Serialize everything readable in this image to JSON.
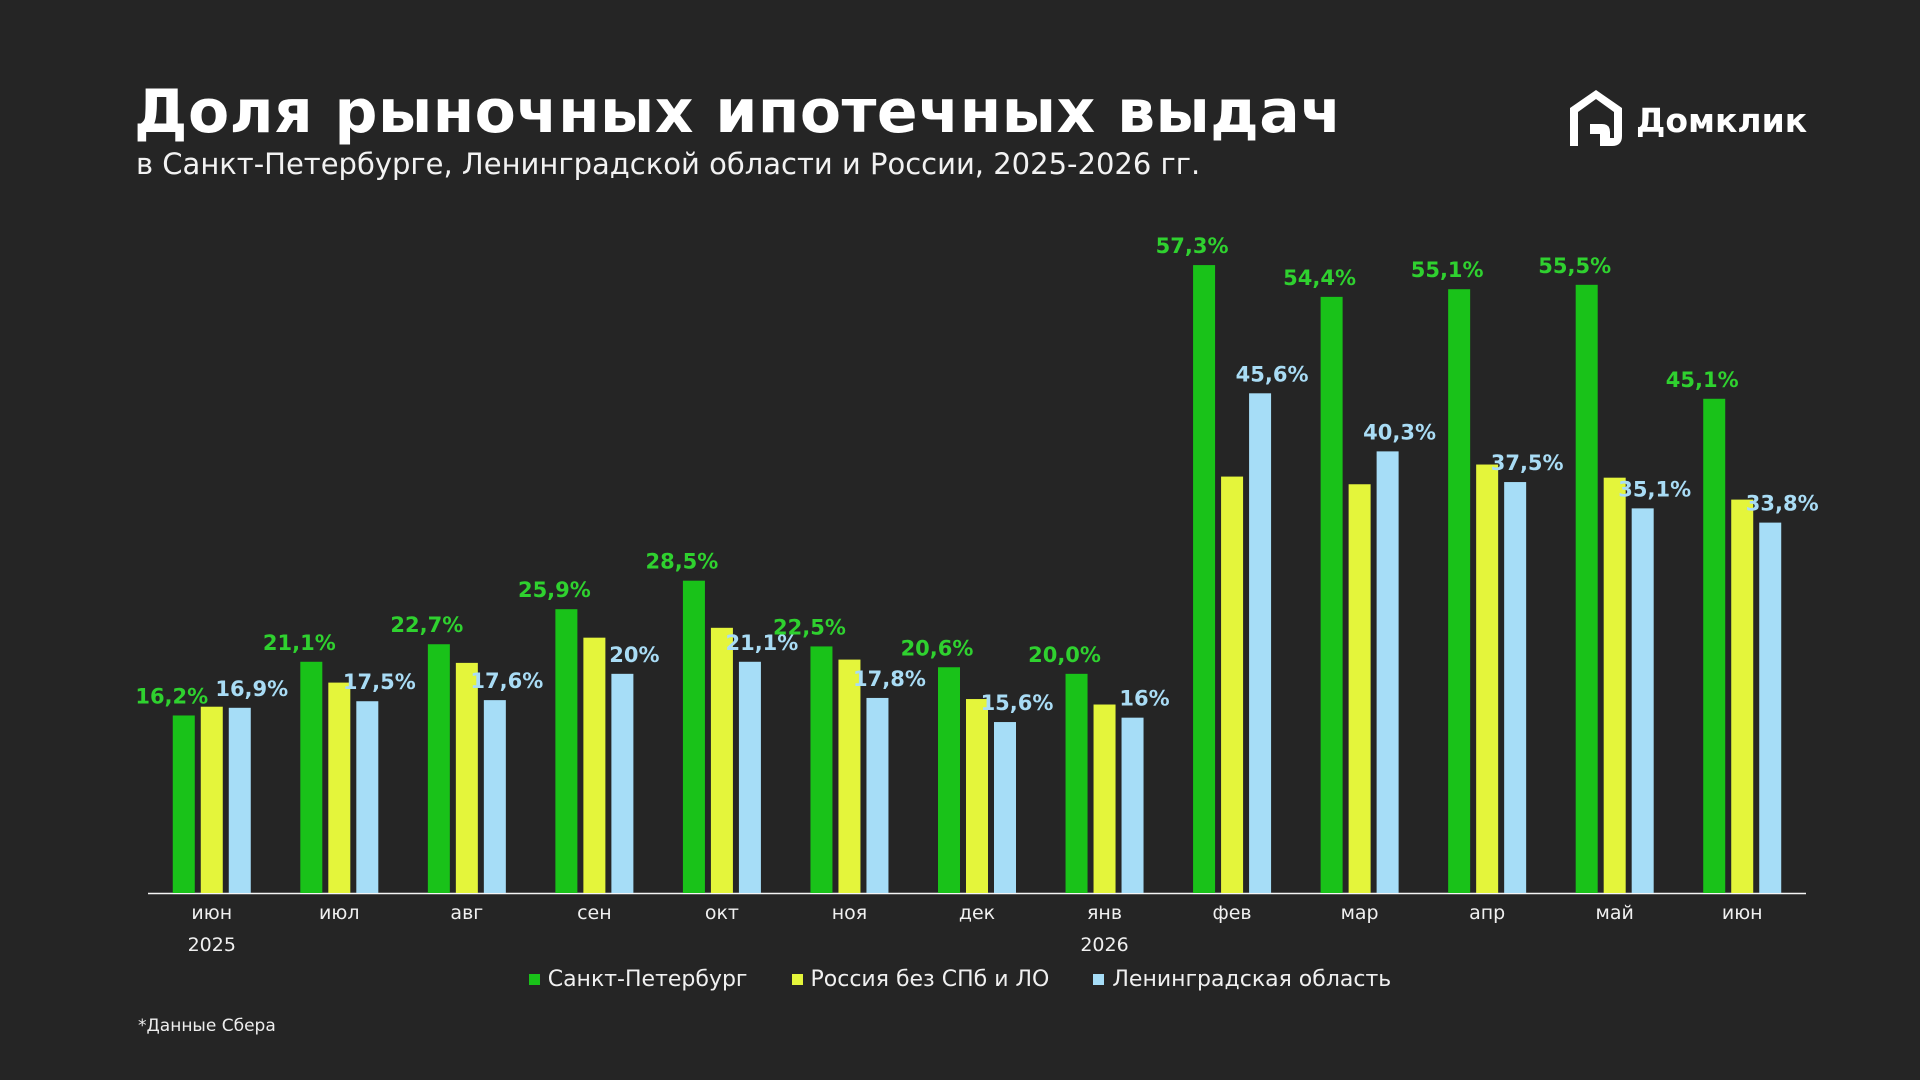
{
  "header": {
    "title": "Доля рыночных ипотечных выдач",
    "subtitle": "в Санкт-Петербурге, Ленинградской области и России, 2025-2026 гг."
  },
  "logo": {
    "text": "Домклик",
    "icon": "house-logo-icon"
  },
  "footnote": "*Данные Сбера",
  "chart_data": {
    "type": "bar",
    "title": "Доля рыночных ипотечных выдач",
    "subtitle": "в Санкт-Петербурге, Ленинградской области и России, 2025-2026 гг.",
    "categories": [
      "июн",
      "июл",
      "авг",
      "сен",
      "окт",
      "ноя",
      "дек",
      "янв",
      "фев",
      "мар",
      "апр",
      "май",
      "июн"
    ],
    "year_labels": [
      {
        "index": 0,
        "label": "2025"
      },
      {
        "index": 7,
        "label": "2026"
      }
    ],
    "series": [
      {
        "name": "Санкт-Петербург",
        "color": "#19c219",
        "label_color": "#2fd12f",
        "values": [
          16.2,
          21.1,
          22.7,
          25.9,
          28.5,
          22.5,
          20.6,
          20.0,
          57.3,
          54.4,
          55.1,
          55.5,
          45.1
        ],
        "labels": [
          "16,2%",
          "21,1%",
          "22,7%",
          "25,9%",
          "28,5%",
          "22,5%",
          "20,6%",
          "20,0%",
          "57,3%",
          "54,4%",
          "55,1%",
          "55,5%",
          "45,1%"
        ]
      },
      {
        "name": "Россия без СПб и ЛО",
        "color": "#e4f53b",
        "values": [
          17.0,
          19.2,
          21.0,
          23.3,
          24.2,
          21.3,
          17.7,
          17.2,
          38.0,
          37.3,
          39.1,
          37.9,
          35.9
        ],
        "labels": []
      },
      {
        "name": "Ленинградская область",
        "color": "#a6ddf7",
        "label_color": "#a9dcf5",
        "values": [
          16.9,
          17.5,
          17.6,
          20.0,
          21.1,
          17.8,
          15.6,
          16.0,
          45.6,
          40.3,
          37.5,
          35.1,
          33.8
        ],
        "labels": [
          "16,9%",
          "17,5%",
          "17,6%",
          "20%",
          "21,1%",
          "17,8%",
          "15,6%",
          "16%",
          "45,6%",
          "40,3%",
          "37,5%",
          "35,1%",
          "33,8%"
        ]
      }
    ],
    "ylim": [
      0,
      60
    ],
    "xlabel": "",
    "ylabel": "",
    "grid": false,
    "legend_position": "bottom-center"
  }
}
